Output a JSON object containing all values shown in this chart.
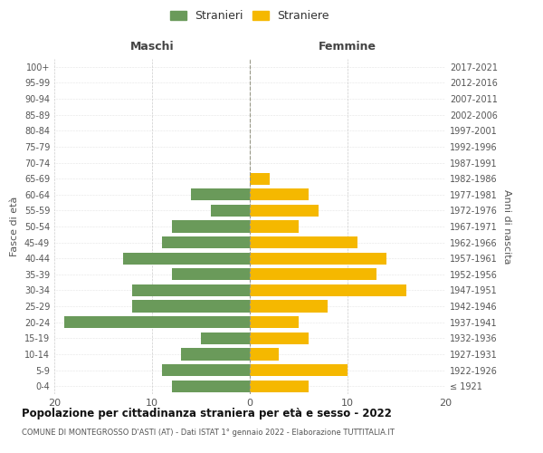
{
  "age_groups": [
    "100+",
    "95-99",
    "90-94",
    "85-89",
    "80-84",
    "75-79",
    "70-74",
    "65-69",
    "60-64",
    "55-59",
    "50-54",
    "45-49",
    "40-44",
    "35-39",
    "30-34",
    "25-29",
    "20-24",
    "15-19",
    "10-14",
    "5-9",
    "0-4"
  ],
  "birth_years": [
    "≤ 1921",
    "1922-1926",
    "1927-1931",
    "1932-1936",
    "1937-1941",
    "1942-1946",
    "1947-1951",
    "1952-1956",
    "1957-1961",
    "1962-1966",
    "1967-1971",
    "1972-1976",
    "1977-1981",
    "1982-1986",
    "1987-1991",
    "1992-1996",
    "1997-2001",
    "2002-2006",
    "2007-2011",
    "2012-2016",
    "2017-2021"
  ],
  "maschi": [
    0,
    0,
    0,
    0,
    0,
    0,
    0,
    0,
    6,
    4,
    8,
    9,
    13,
    8,
    12,
    12,
    19,
    5,
    7,
    9,
    8
  ],
  "femmine": [
    0,
    0,
    0,
    0,
    0,
    0,
    0,
    2,
    6,
    7,
    5,
    11,
    14,
    13,
    16,
    8,
    5,
    6,
    3,
    10,
    6
  ],
  "maschi_color": "#6a9a5a",
  "femmine_color": "#f5b800",
  "legend_maschi": "Stranieri",
  "legend_femmine": "Straniere",
  "header_left": "Maschi",
  "header_right": "Femmine",
  "ylabel_left": "Fasce di età",
  "ylabel_right": "Anni di nascita",
  "title_main": "Popolazione per cittadinanza straniera per età e sesso - 2022",
  "title_sub": "COMUNE DI MONTEGROSSO D'ASTI (AT) - Dati ISTAT 1° gennaio 2022 - Elaborazione TUTTITALIA.IT",
  "xlim": 20,
  "background_color": "#ffffff",
  "grid_color": "#cccccc",
  "bar_height": 0.75
}
